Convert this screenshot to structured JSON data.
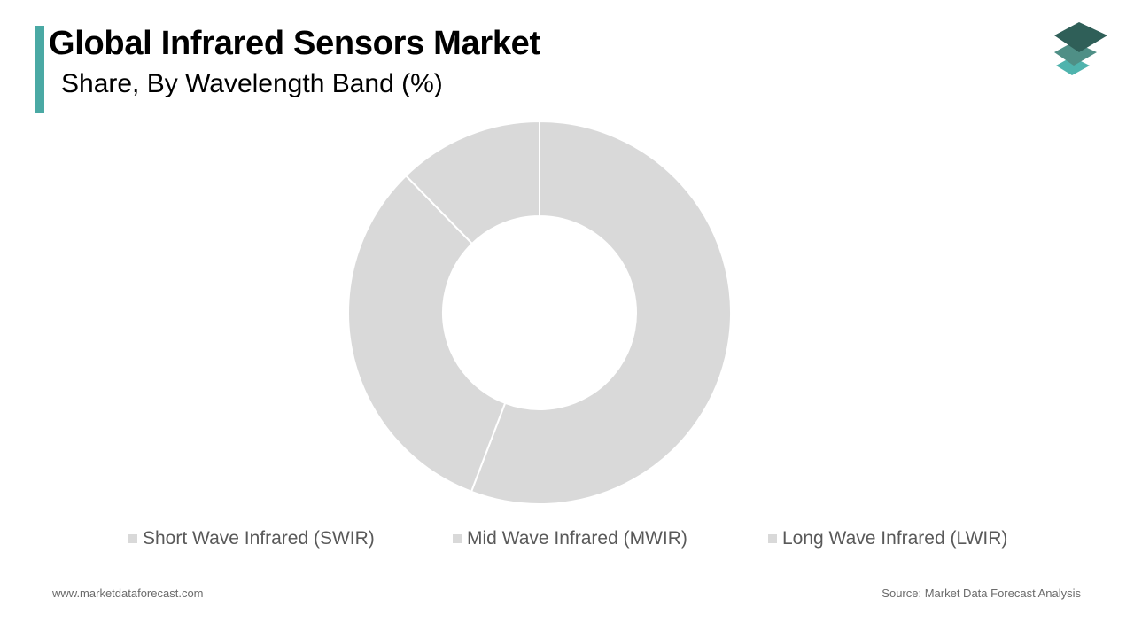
{
  "header": {
    "title": "Global Infrared Sensors Market",
    "subtitle": "Share, By Wavelength Band  (%)"
  },
  "colors": {
    "accent": "#4aa9a4",
    "slice": "#d9d9d9",
    "logo_dark": "#2f5f58",
    "logo_mid": "#4f8f86",
    "logo_light": "#4fb3ad"
  },
  "logo": {
    "icon": "stacked-layers-icon"
  },
  "chart_data": {
    "type": "pie",
    "donut": true,
    "title": "Global Infrared Sensors Market",
    "subtitle": "Share, By Wavelength Band  (%)",
    "categories": [
      "Short Wave Infrared (SWIR)",
      "Mid Wave Infrared (MWIR)",
      "Long Wave Infrared (LWIR)"
    ],
    "values": [
      55.8,
      31.9,
      12.3
    ],
    "legend_position": "bottom"
  },
  "footer": {
    "website": "www.marketdataforecast.com",
    "source": "Source: Market Data Forecast Analysis"
  }
}
